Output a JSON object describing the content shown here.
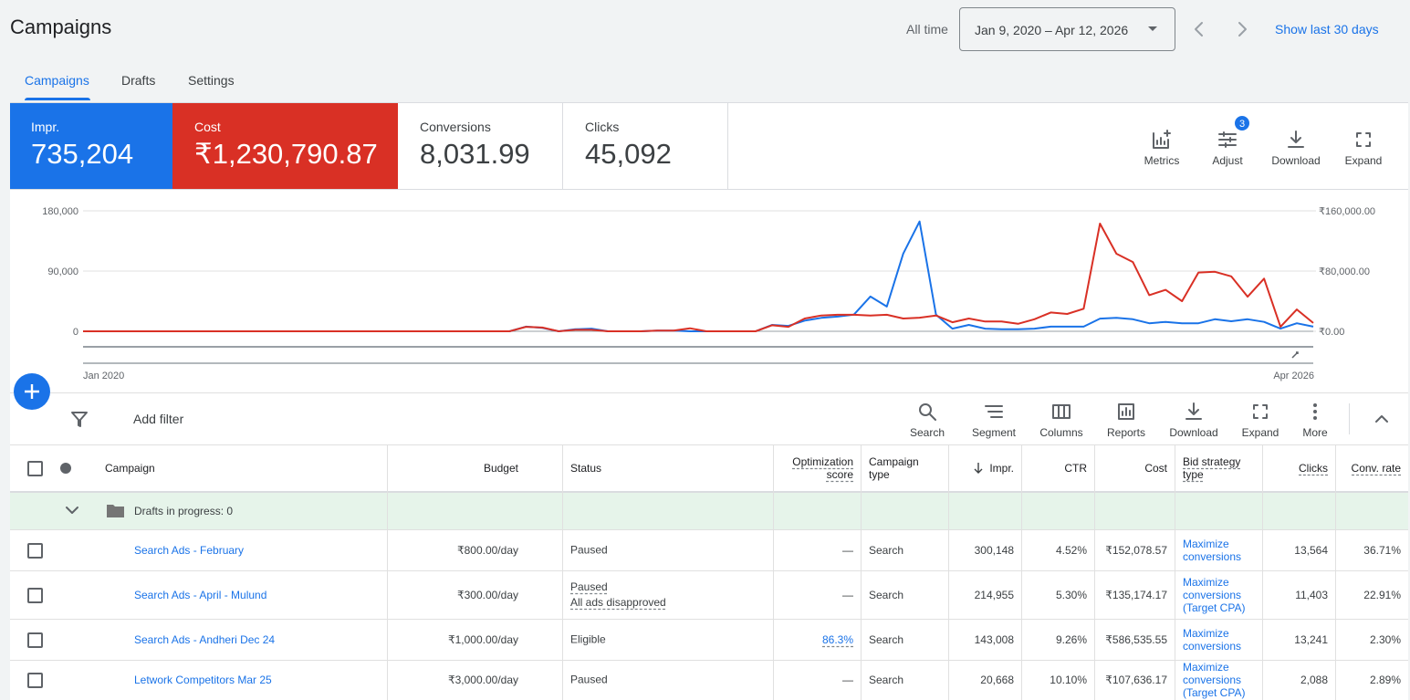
{
  "header": {
    "title": "Campaigns",
    "range_label": "All time",
    "date_range": "Jan 9, 2020 – Apr 12, 2026",
    "show_last": "Show last 30 days"
  },
  "tabs": [
    "Campaigns",
    "Drafts",
    "Settings"
  ],
  "scorecards": [
    {
      "label": "Conversions",
      "value": "8,031.99"
    },
    {
      "label": "Clicks",
      "value": "45,092"
    }
  ],
  "chart_tools": [
    "Metrics",
    "Adjust",
    "Download",
    "Expand"
  ],
  "adjust_badge": 3,
  "add_filter": "Add filter",
  "table_tools": [
    "Search",
    "Segment",
    "Columns",
    "Reports",
    "Download",
    "Expand",
    "More"
  ],
  "chart_data": {
    "type": "line",
    "categories": [
      "Jan 2020",
      null,
      null,
      null,
      null,
      null,
      null,
      null,
      null,
      null,
      null,
      null,
      null,
      null,
      null,
      null,
      null,
      null,
      null,
      null,
      null,
      null,
      null,
      null,
      null,
      null,
      null,
      null,
      null,
      null,
      null,
      null,
      null,
      null,
      null,
      null,
      null,
      null,
      null,
      null,
      null,
      null,
      null,
      null,
      null,
      null,
      null,
      null,
      null,
      null,
      null,
      null,
      null,
      null,
      null,
      null,
      null,
      null,
      null,
      null,
      null,
      null,
      null,
      null,
      null,
      null,
      null,
      null,
      null,
      null,
      null,
      null,
      null,
      null,
      null,
      "Apr 2026"
    ],
    "series": [
      {
        "name": "Impr.",
        "total": "735,204",
        "color": "#1a73e8",
        "axis": "y",
        "values": [
          0,
          0,
          0,
          0,
          0,
          0,
          0,
          0,
          0,
          0,
          0,
          0,
          0,
          0,
          0,
          0,
          0,
          0,
          0,
          0,
          0,
          0,
          0,
          0,
          0,
          0,
          0,
          7000,
          5000,
          0,
          3000,
          4000,
          0,
          0,
          0,
          1000,
          1000,
          0,
          0,
          0,
          0,
          0,
          9500,
          8000,
          16000,
          20000,
          22000,
          25000,
          52000,
          37000,
          116000,
          164000,
          25000,
          4000,
          9500,
          4000,
          3000,
          3000,
          4000,
          7000,
          7000,
          7000,
          19000,
          20000,
          18000,
          12000,
          14000,
          12000,
          12000,
          18000,
          15000,
          18000,
          14000,
          4000,
          12000,
          7000
        ]
      },
      {
        "name": "Cost",
        "total": "₹1,230,790.87",
        "color": "#d93025",
        "axis": "y2",
        "values": [
          0,
          0,
          0,
          0,
          0,
          0,
          0,
          0,
          0,
          0,
          0,
          0,
          0,
          0,
          0,
          0,
          0,
          0,
          0,
          0,
          0,
          0,
          0,
          0,
          0,
          0,
          0,
          6000,
          5000,
          0,
          2000,
          2000,
          0,
          0,
          0,
          1000,
          1000,
          4000,
          0,
          0,
          0,
          0,
          8000,
          6000,
          17000,
          21000,
          22000,
          22000,
          21000,
          22000,
          17000,
          18000,
          21000,
          12000,
          17000,
          13000,
          13000,
          10000,
          16000,
          25000,
          23000,
          30000,
          143000,
          103000,
          92000,
          48000,
          55000,
          40000,
          78000,
          79000,
          73000,
          46000,
          70000,
          6000,
          29000,
          11000
        ]
      }
    ],
    "ylim": [
      0,
      180000
    ],
    "yticks": [
      0,
      {
        "value": 90000,
        "label": "90,000"
      },
      {
        "value": 180000,
        "label": "180,000"
      }
    ],
    "y2lim": [
      0,
      160000
    ],
    "y2ticks": [
      {
        "value": 0,
        "label": "₹0.00"
      },
      {
        "value": 80000,
        "label": "₹80,000.00"
      },
      {
        "value": 160000,
        "label": "₹160,000.00"
      }
    ],
    "grid": true
  },
  "table": {
    "columns": [
      "Campaign",
      "Budget",
      "Status",
      "Optimization score",
      "Campaign type",
      "Impr.",
      "CTR",
      "Cost",
      "Bid strategy type",
      "Clicks",
      "Conv. rate"
    ],
    "drafts_row": "Drafts in progress: 0",
    "rows": [
      {
        "dot_color": "#5f6368",
        "name": "Search Ads - February",
        "budget": "₹800.00/day",
        "status": [
          "Paused"
        ],
        "optimization_score": "—",
        "campaign_type": "Search",
        "impr": "300,148",
        "ctr": "4.52%",
        "cost": "₹152,078.57",
        "bid_strategy_type": "Maximize conversions",
        "clicks": "13,564",
        "conv_rate": "36.71%"
      },
      {
        "dot_color": "#5f6368",
        "name": "Search Ads - April - Mulund",
        "budget": "₹300.00/day",
        "status": [
          "Paused",
          "All ads disapproved"
        ],
        "optimization_score": "—",
        "campaign_type": "Search",
        "impr": "214,955",
        "ctr": "5.30%",
        "cost": "₹135,174.17",
        "bid_strategy_type": "Maximize conversions (Target CPA)",
        "clicks": "11,403",
        "conv_rate": "22.91%"
      },
      {
        "dot_color": "#188038",
        "name": "Search Ads - Andheri Dec 24",
        "budget": "₹1,000.00/day",
        "status": [
          "Eligible"
        ],
        "optimization_score": "86.3%",
        "campaign_type": "Search",
        "impr": "143,008",
        "ctr": "9.26%",
        "cost": "₹586,535.55",
        "bid_strategy_type": "Maximize conversions",
        "clicks": "13,241",
        "conv_rate": "2.30%"
      },
      {
        "dot_color": "#5f6368",
        "name": "Letwork Competitors Mar 25",
        "budget": "₹3,000.00/day",
        "status": [
          "Paused"
        ],
        "optimization_score": "—",
        "campaign_type": "Search",
        "impr": "20,668",
        "ctr": "10.10%",
        "cost": "₹107,636.17",
        "bid_strategy_type": "Maximize conversions (Target CPA)",
        "clicks": "2,088",
        "conv_rate": "2.89%"
      }
    ]
  }
}
